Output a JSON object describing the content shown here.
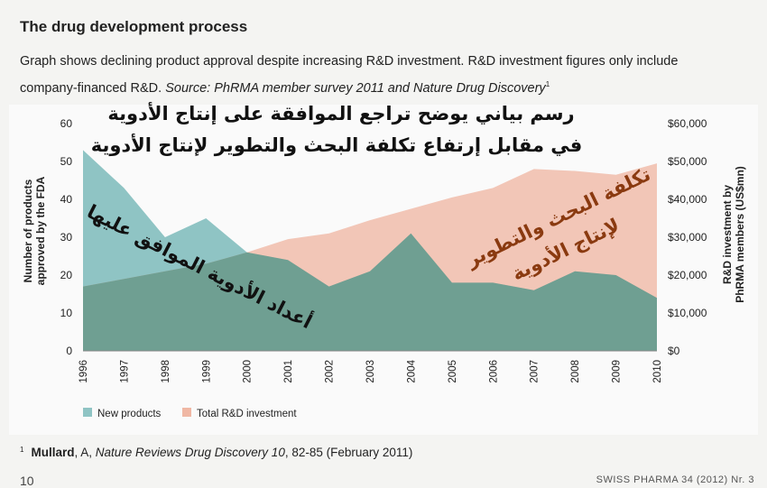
{
  "header": {
    "title": "The drug development process",
    "caption_main": "Graph shows declining product approval despite increasing R&D investment. R&D investment figures only include company-financed R&D.",
    "caption_source": "Source: PhRMA member survey 2011 and Nature Drug Discovery",
    "caption_ref": "1"
  },
  "chart_data": {
    "type": "area",
    "title": "The drug development process",
    "categories": [
      "1996",
      "1997",
      "1998",
      "1999",
      "2000",
      "2001",
      "2002",
      "2003",
      "2004",
      "2005",
      "2006",
      "2007",
      "2008",
      "2009",
      "2010"
    ],
    "series": [
      {
        "name": "New products",
        "axis": "left",
        "color": "#8fc4c4",
        "values": [
          53,
          43,
          30,
          35,
          26,
          24,
          17,
          21,
          31,
          18,
          18,
          16,
          21,
          20,
          14
        ]
      },
      {
        "name": "Total R&D investment",
        "axis": "right",
        "color": "#f0b7a4",
        "values": [
          17000,
          19000,
          21000,
          23000,
          26000,
          29500,
          31000,
          34500,
          37500,
          40500,
          43000,
          48000,
          47500,
          46500,
          49500
        ]
      }
    ],
    "ylabel_left": "Number of products approved by the FDA",
    "ylabel_right": "R&D investment by PhRMA members (US$mn)",
    "ylim_left": [
      0,
      60
    ],
    "yticks_left": [
      "0",
      "10",
      "20",
      "30",
      "40",
      "50",
      "60"
    ],
    "ylim_right": [
      0,
      60000
    ],
    "yticks_right": [
      "$0",
      "$10,000",
      "$20,000",
      "$30,000",
      "$40,000",
      "$50,000",
      "$60,000"
    ],
    "legend_position": "bottom-left",
    "grid": false
  },
  "annotations": {
    "arabic_title_line1": "رسم بياني يوضح تراجع الموافقة على إنتاج الأدوية",
    "arabic_title_line2": "في مقابل إرتفاع تكلفة البحث والتطوير لإنتاج الأدوية",
    "arabic_rd_line1": "تكلفة البحث والتطوير",
    "arabic_rd_line2": "لإنتاج الأدوية",
    "arabic_products_line1": "أعداد الأدوية الموافق عليها"
  },
  "footnote": {
    "number": "1",
    "author": "Mullard",
    "rest1": ", A,",
    "journal": "Nature Reviews Drug Discovery 10",
    "rest2": ", 82-85 (February 2011)"
  },
  "page": {
    "page_number": "10",
    "journal_mark": "SWISS PHARMA 34 (2012) Nr. 3"
  }
}
